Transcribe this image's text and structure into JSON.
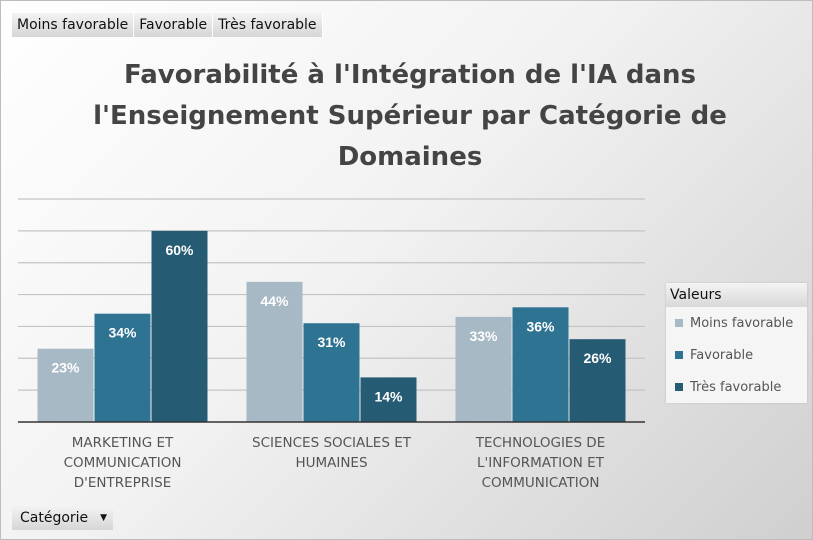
{
  "title": "Favorabilité à l'Intégration de l'IA dans l'Enseignement Supérieur par Catégorie de Domaines",
  "field_buttons": [
    "Moins favorable",
    "Favorable",
    "Très favorable"
  ],
  "filter": {
    "label": "Catégorie",
    "icon": "dropdown-arrow-icon"
  },
  "legend_title": "Valeurs",
  "chart_data": {
    "type": "bar",
    "title": "Favorabilité à l'Intégration de l'IA dans l'Enseignement Supérieur par Catégorie de Domaines",
    "categories": [
      "MARKETING ET COMMUNICATION D'ENTREPRISE",
      "SCIENCES SOCIALES ET HUMAINES",
      "TECHNOLOGIES DE L'INFORMATION ET COMMUNICATION"
    ],
    "category_lines": [
      [
        "MARKETING ET",
        "COMMUNICATION",
        "D'ENTREPRISE"
      ],
      [
        "SCIENCES SOCIALES ET",
        "HUMAINES"
      ],
      [
        "TECHNOLOGIES DE",
        "L'INFORMATION ET",
        "COMMUNICATION"
      ]
    ],
    "series": [
      {
        "name": "Moins favorable",
        "values": [
          23,
          44,
          33
        ],
        "labels": [
          "23%",
          "44%",
          "33%"
        ],
        "color": "#a8b9c6"
      },
      {
        "name": "Favorable",
        "values": [
          34,
          31,
          36
        ],
        "labels": [
          "34%",
          "31%",
          "36%"
        ],
        "color": "#2e7391"
      },
      {
        "name": "Très favorable",
        "values": [
          60,
          14,
          26
        ],
        "labels": [
          "60%",
          "14%",
          "26%"
        ],
        "color": "#265b74"
      }
    ],
    "ylim": [
      0,
      70
    ],
    "grid": true,
    "legend": "right"
  }
}
